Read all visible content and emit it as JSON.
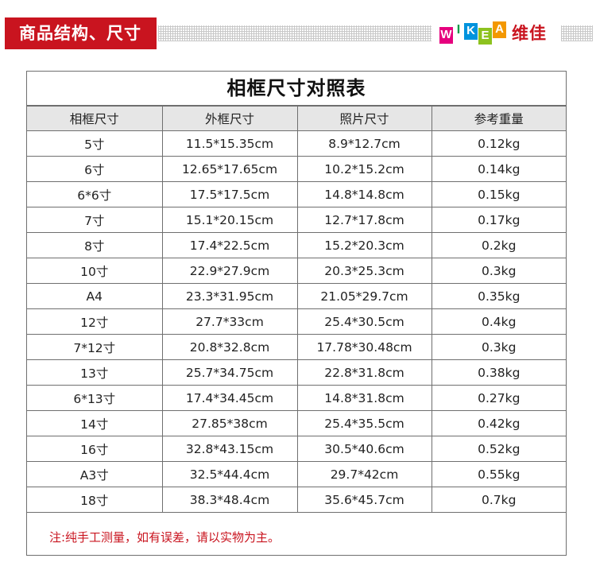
{
  "header": {
    "section_title": "商品结构、尺寸",
    "logo_letters": [
      "W",
      "I",
      "K",
      "E",
      "A"
    ],
    "brand_cn": "维佳",
    "accent_color": "#c9141f"
  },
  "table": {
    "title": "相框尺寸对照表",
    "columns": [
      "相框尺寸",
      "外框尺寸",
      "照片尺寸",
      "参考重量"
    ],
    "rows": [
      [
        "5寸",
        "11.5*15.35cm",
        "8.9*12.7cm",
        "0.12kg"
      ],
      [
        "6寸",
        "12.65*17.65cm",
        "10.2*15.2cm",
        "0.14kg"
      ],
      [
        "6*6寸",
        "17.5*17.5cm",
        "14.8*14.8cm",
        "0.15kg"
      ],
      [
        "7寸",
        "15.1*20.15cm",
        "12.7*17.8cm",
        "0.17kg"
      ],
      [
        "8寸",
        "17.4*22.5cm",
        "15.2*20.3cm",
        "0.2kg"
      ],
      [
        "10寸",
        "22.9*27.9cm",
        "20.3*25.3cm",
        "0.3kg"
      ],
      [
        "A4",
        "23.3*31.95cm",
        "21.05*29.7cm",
        "0.35kg"
      ],
      [
        "12寸",
        "27.7*33cm",
        "25.4*30.5cm",
        "0.4kg"
      ],
      [
        "7*12寸",
        "20.8*32.8cm",
        "17.78*30.48cm",
        "0.3kg"
      ],
      [
        "13寸",
        "25.7*34.75cm",
        "22.8*31.8cm",
        "0.38kg"
      ],
      [
        "6*13寸",
        "17.4*34.45cm",
        "14.8*31.8cm",
        "0.27kg"
      ],
      [
        "14寸",
        "27.85*38cm",
        "25.4*35.5cm",
        "0.42kg"
      ],
      [
        "16寸",
        "32.8*43.15cm",
        "30.5*40.6cm",
        "0.52kg"
      ],
      [
        "A3寸",
        "32.5*44.4cm",
        "29.7*42cm",
        "0.55kg"
      ],
      [
        "18寸",
        "38.3*48.4cm",
        "35.6*45.7cm",
        "0.7kg"
      ]
    ],
    "note": "注:纯手工测量，如有误差，请以实物为主。"
  }
}
